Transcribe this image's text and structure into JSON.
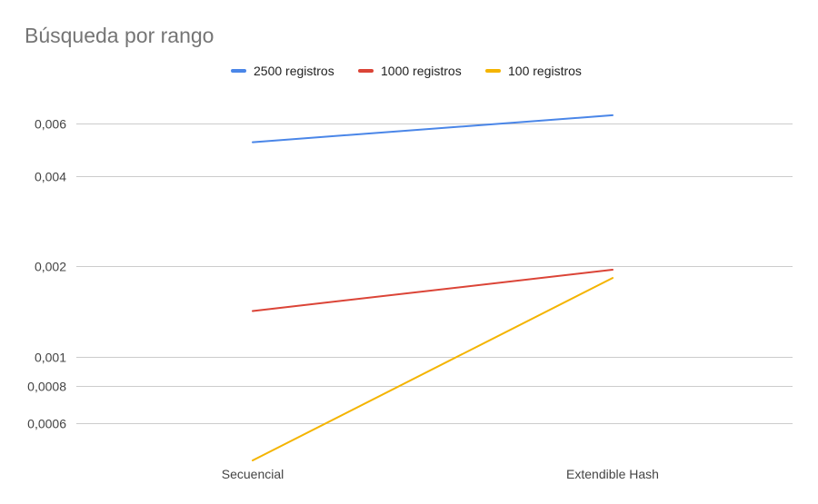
{
  "chart_data": {
    "type": "line",
    "title": "Búsqueda por rango",
    "categories": [
      "Secuencial",
      "Extendible Hash"
    ],
    "y_scale": "log",
    "y_ticks": [
      0.0006,
      0.0008,
      0.001,
      0.002,
      0.004,
      0.006
    ],
    "y_tick_labels": [
      "0,0006",
      "0,0008",
      "0,001",
      "0,002",
      "0,004",
      "0,006"
    ],
    "ylim": [
      0.00045,
      0.0071
    ],
    "grid": true,
    "legend_position": "top",
    "series": [
      {
        "name": "2500 registros",
        "color": "#4a86e8",
        "values": [
          0.0052,
          0.0064
        ]
      },
      {
        "name": "1000 registros",
        "color": "#db4437",
        "values": [
          0.00142,
          0.00195
        ]
      },
      {
        "name": "100 registros",
        "color": "#f4b400",
        "values": [
          0.00045,
          0.00183
        ]
      }
    ]
  }
}
